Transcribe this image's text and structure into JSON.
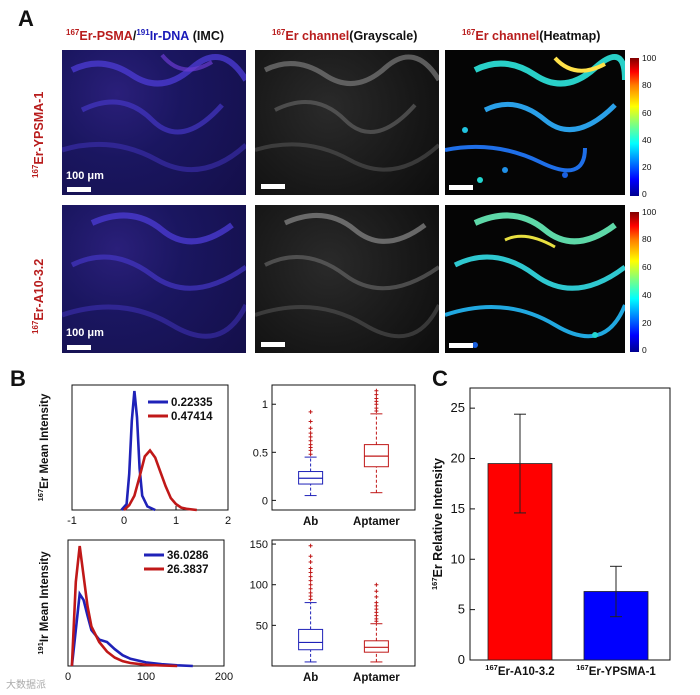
{
  "panels": {
    "a": "A",
    "b": "B",
    "c": "C"
  },
  "headers": {
    "col1_sup1": "167",
    "col1_er": "Er-PSMA",
    "col1_slash": "/",
    "col1_sup2": "191",
    "col1_ir": "Ir-DNA",
    "col1_imc": "(IMC)",
    "col2_sup": "167",
    "col2_er": "Er channel",
    "col2_rest": "(Grayscale)",
    "col3_sup": "167",
    "col3_er": "Er channel",
    "col3_rest": "(Heatmap)"
  },
  "rows": {
    "row1_sup": "167",
    "row1_label": "Er-YPSMA-1",
    "row2_sup": "167",
    "row2_label": "Er-A10-3.2"
  },
  "scale": {
    "label": "100 μm"
  },
  "colorbar": {
    "ticks": [
      "100",
      "80",
      "60",
      "40",
      "20",
      "0"
    ]
  },
  "watermark": "大数据派",
  "chart_data": [
    {
      "id": "B-top-left",
      "type": "line",
      "ylabel_sup": "167",
      "ylabel": "Er Mean Intensity",
      "xlim": [
        -1,
        2
      ],
      "xticks": [
        "-1",
        "0",
        "1",
        "2"
      ],
      "series": [
        {
          "name": "0.22335",
          "color": "#1f22b8",
          "x": [
            -0.05,
            0.05,
            0.1,
            0.15,
            0.2,
            0.25,
            0.3,
            0.35,
            0.45,
            0.6
          ],
          "y": [
            0,
            0.05,
            0.3,
            0.75,
            1.0,
            0.78,
            0.35,
            0.12,
            0.03,
            0
          ]
        },
        {
          "name": "0.47414",
          "color": "#c01818",
          "x": [
            0.0,
            0.1,
            0.2,
            0.3,
            0.4,
            0.5,
            0.6,
            0.7,
            0.8,
            0.9,
            1.0,
            1.1,
            1.2,
            1.4
          ],
          "y": [
            0,
            0.04,
            0.12,
            0.28,
            0.45,
            0.5,
            0.44,
            0.32,
            0.2,
            0.1,
            0.05,
            0.02,
            0.01,
            0
          ]
        }
      ]
    },
    {
      "id": "B-top-right",
      "type": "box",
      "categories": [
        "Ab",
        "Aptamer"
      ],
      "yticks": [
        "0",
        "0.5",
        "1"
      ],
      "ylim": [
        -0.1,
        1.2
      ],
      "boxes": [
        {
          "name": "Ab",
          "color": "#1f22b8",
          "whisk_lo": 0.05,
          "q1": 0.17,
          "median": 0.23,
          "q3": 0.3,
          "whisk_hi": 0.45,
          "outliers": [
            0.48,
            0.52,
            0.55,
            0.58,
            0.62,
            0.66,
            0.7,
            0.75,
            0.82,
            0.92
          ]
        },
        {
          "name": "Aptamer",
          "color": "#c01818",
          "whisk_lo": 0.08,
          "q1": 0.35,
          "median": 0.46,
          "q3": 0.58,
          "whisk_hi": 0.9,
          "outliers": [
            0.93,
            0.96,
            1.0,
            1.03,
            1.06,
            1.1,
            1.14
          ]
        }
      ]
    },
    {
      "id": "B-bottom-left",
      "type": "line",
      "ylabel_sup": "191",
      "ylabel": "Ir Mean Intensity",
      "xlim": [
        0,
        200
      ],
      "xticks": [
        "0",
        "100",
        "200"
      ],
      "series": [
        {
          "name": "36.0286",
          "color": "#1f22b8",
          "x": [
            5,
            10,
            15,
            20,
            25,
            30,
            40,
            50,
            60,
            70,
            80,
            100,
            120,
            140,
            160
          ],
          "y": [
            0,
            0.3,
            0.6,
            0.55,
            0.42,
            0.3,
            0.22,
            0.2,
            0.14,
            0.09,
            0.06,
            0.03,
            0.015,
            0.006,
            0
          ]
        },
        {
          "name": "26.3837",
          "color": "#c01818",
          "x": [
            5,
            10,
            15,
            20,
            25,
            30,
            40,
            50,
            60,
            70,
            80,
            100,
            120,
            140
          ],
          "y": [
            0,
            0.7,
            1.0,
            0.75,
            0.5,
            0.33,
            0.2,
            0.12,
            0.07,
            0.04,
            0.025,
            0.01,
            0.004,
            0
          ]
        }
      ]
    },
    {
      "id": "B-bottom-right",
      "type": "box",
      "categories": [
        "Ab",
        "Aptamer"
      ],
      "yticks": [
        "50",
        "100",
        "150"
      ],
      "ylim": [
        0,
        155
      ],
      "boxes": [
        {
          "name": "Ab",
          "color": "#1f22b8",
          "whisk_lo": 5,
          "q1": 20,
          "median": 29,
          "q3": 45,
          "whisk_hi": 78,
          "outliers": [
            82,
            86,
            90,
            95,
            100,
            105,
            110,
            115,
            120,
            128,
            135,
            148
          ]
        },
        {
          "name": "Aptamer",
          "color": "#c01818",
          "whisk_lo": 5,
          "q1": 17,
          "median": 23,
          "q3": 31,
          "whisk_hi": 52,
          "outliers": [
            55,
            58,
            62,
            66,
            70,
            74,
            78,
            85,
            92,
            100
          ]
        }
      ]
    },
    {
      "id": "C",
      "type": "bar",
      "ylabel_sup": "167",
      "ylabel": "Er Relative Intensity",
      "ylim": [
        0,
        27
      ],
      "yticks": [
        "0",
        "5",
        "10",
        "15",
        "20",
        "25"
      ],
      "categories_sup": [
        "167",
        "167"
      ],
      "categories": [
        "Er-A10-3.2",
        "Er-YPSMA-1"
      ],
      "values": [
        19.5,
        6.8
      ],
      "errors": [
        4.9,
        2.5
      ],
      "colors": [
        "#ff0000",
        "#0000ff"
      ]
    }
  ]
}
